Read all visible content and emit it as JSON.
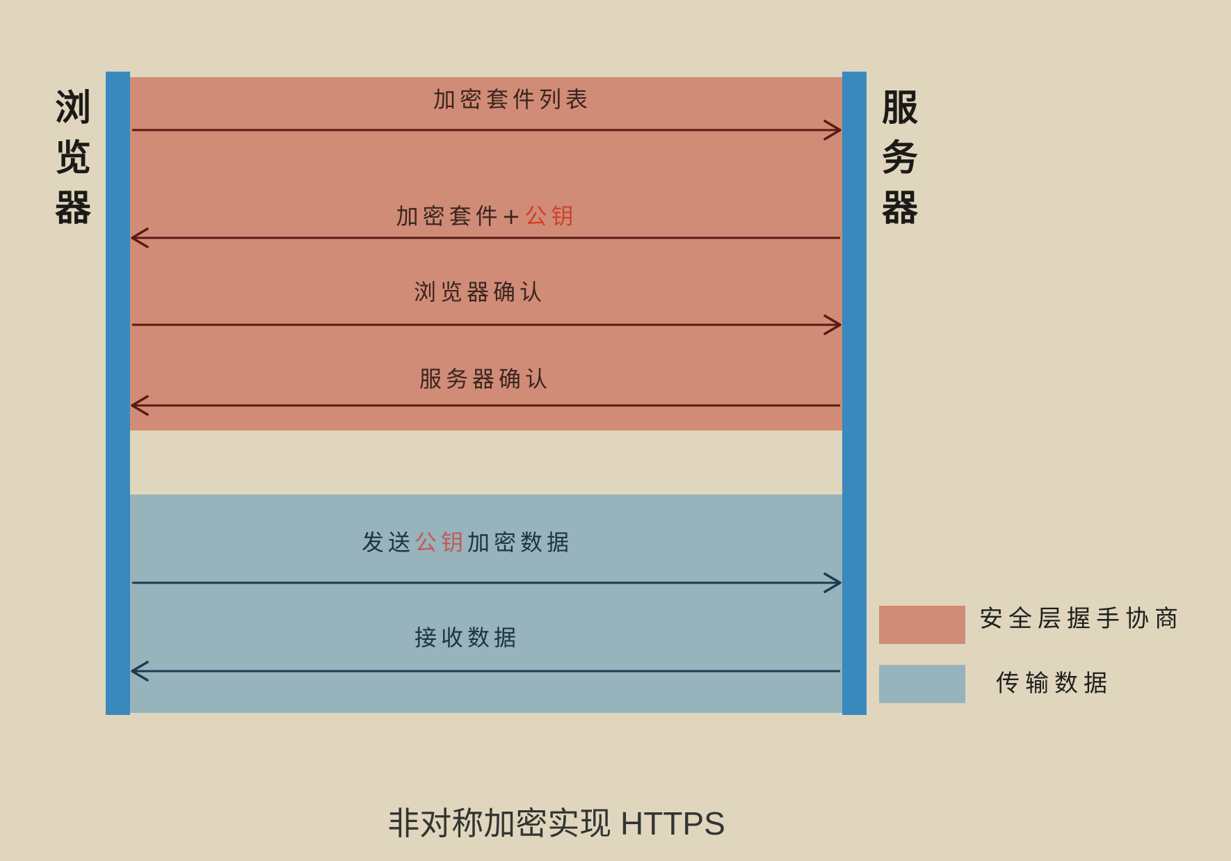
{
  "actors": {
    "browser": "浏\n览\n器",
    "server": "服\n务\n器"
  },
  "messages": [
    {
      "id": "m1",
      "parts": [
        {
          "text": "加密套件列表"
        }
      ],
      "direction": "right",
      "zone": "handshake"
    },
    {
      "id": "m2",
      "parts": [
        {
          "text": "加密套件+"
        },
        {
          "text": "公钥",
          "highlight": "red"
        }
      ],
      "direction": "left",
      "zone": "handshake"
    },
    {
      "id": "m3",
      "parts": [
        {
          "text": "浏览器确认"
        }
      ],
      "direction": "right",
      "zone": "handshake"
    },
    {
      "id": "m4",
      "parts": [
        {
          "text": "服务器确认"
        }
      ],
      "direction": "left",
      "zone": "handshake"
    },
    {
      "id": "m5",
      "parts": [
        {
          "text": "发送"
        },
        {
          "text": "公钥",
          "highlight": "pink"
        },
        {
          "text": "加密数据"
        }
      ],
      "direction": "right",
      "zone": "transfer"
    },
    {
      "id": "m6",
      "parts": [
        {
          "text": "接收数据"
        }
      ],
      "direction": "left",
      "zone": "transfer"
    }
  ],
  "legend": [
    {
      "label": "安全层握手协商",
      "color": "#d08c76"
    },
    {
      "label": "传输数据",
      "color": "#97b3bb"
    }
  ],
  "colors": {
    "lifeline": "#3a89be",
    "handshake": "#d08c76",
    "transfer": "#97b3bb",
    "arrow_handshake": "#5a1a14",
    "arrow_transfer": "#1d3a52"
  },
  "caption": "非对称加密实现 HTTPS"
}
